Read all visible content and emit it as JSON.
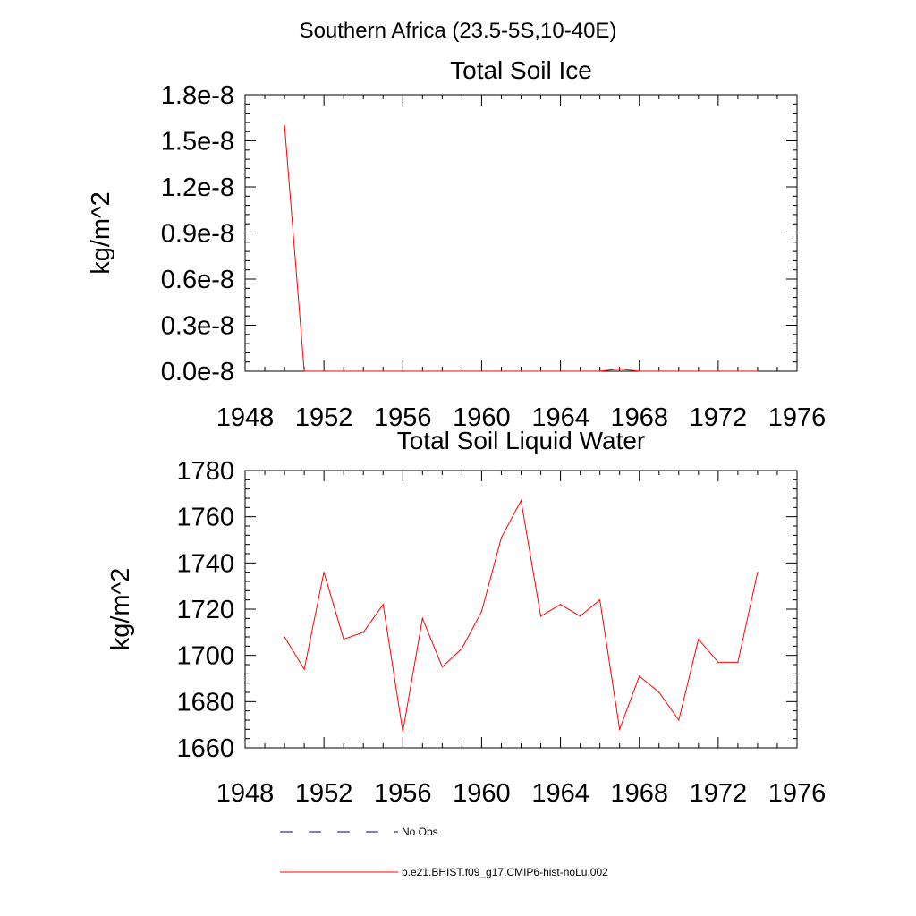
{
  "figure_title": "Southern Africa (23.5-5S,10-40E)",
  "legend": {
    "placement": "bottom",
    "entries": [
      {
        "label": "No Obs",
        "color": "#000080",
        "style": "dashed"
      },
      {
        "label": "b.e21.BHIST.f09_g17.CMIP6-hist-noLu.002",
        "color": "#ff0000",
        "style": "solid"
      }
    ]
  },
  "chart_data": [
    {
      "type": "line",
      "title": "Total Soil Ice",
      "xlabel": "",
      "ylabel": "kg/m^2",
      "xlim": [
        1948,
        1976
      ],
      "ylim": [
        0.0,
        1.8e-08
      ],
      "xticks": [
        1948,
        1952,
        1956,
        1960,
        1964,
        1968,
        1972,
        1976
      ],
      "xtick_labels": [
        "1948",
        "1952",
        "1956",
        "1960",
        "1964",
        "1968",
        "1972",
        "1976"
      ],
      "yticks": [
        0.0,
        3e-09,
        6e-09,
        9e-09,
        1.2e-08,
        1.5e-08,
        1.8e-08
      ],
      "ytick_labels": [
        "0.0e-8",
        "0.3e-8",
        "0.6e-8",
        "0.9e-8",
        "1.2e-8",
        "1.5e-8",
        "1.8e-8"
      ],
      "grid": false,
      "series": [
        {
          "name": "b.e21.BHIST.f09_g17.CMIP6-hist-noLu.002",
          "color": "#ff0000",
          "x": [
            1950,
            1951,
            1952,
            1953,
            1954,
            1955,
            1956,
            1957,
            1958,
            1959,
            1960,
            1961,
            1962,
            1963,
            1964,
            1965,
            1966,
            1967,
            1968,
            1969,
            1970,
            1971,
            1972,
            1973,
            1974
          ],
          "values": [
            1.6e-08,
            0,
            0,
            0,
            0,
            0,
            0,
            0,
            0,
            0,
            0,
            0,
            0,
            0,
            0,
            0,
            0,
            1.5e-10,
            0,
            0,
            0,
            0,
            0,
            0,
            0
          ]
        }
      ]
    },
    {
      "type": "line",
      "title": "Total Soil Liquid Water",
      "xlabel": "",
      "ylabel": "kg/m^2",
      "xlim": [
        1948,
        1976
      ],
      "ylim": [
        1660,
        1780
      ],
      "xticks": [
        1948,
        1952,
        1956,
        1960,
        1964,
        1968,
        1972,
        1976
      ],
      "xtick_labels": [
        "1948",
        "1952",
        "1956",
        "1960",
        "1964",
        "1968",
        "1972",
        "1976"
      ],
      "yticks": [
        1660,
        1680,
        1700,
        1720,
        1740,
        1760,
        1780
      ],
      "ytick_labels": [
        "1660",
        "1680",
        "1700",
        "1720",
        "1740",
        "1760",
        "1780"
      ],
      "grid": false,
      "series": [
        {
          "name": "b.e21.BHIST.f09_g17.CMIP6-hist-noLu.002",
          "color": "#ff0000",
          "x": [
            1950,
            1951,
            1952,
            1953,
            1954,
            1955,
            1956,
            1957,
            1958,
            1959,
            1960,
            1961,
            1962,
            1963,
            1964,
            1965,
            1966,
            1967,
            1968,
            1969,
            1970,
            1971,
            1972,
            1973,
            1974
          ],
          "values": [
            1708,
            1694,
            1736,
            1707,
            1710,
            1722,
            1667,
            1716,
            1695,
            1703,
            1719,
            1751,
            1767,
            1717,
            1722,
            1717,
            1724,
            1668,
            1691,
            1684,
            1672,
            1707,
            1697,
            1697,
            1736
          ]
        }
      ]
    }
  ]
}
